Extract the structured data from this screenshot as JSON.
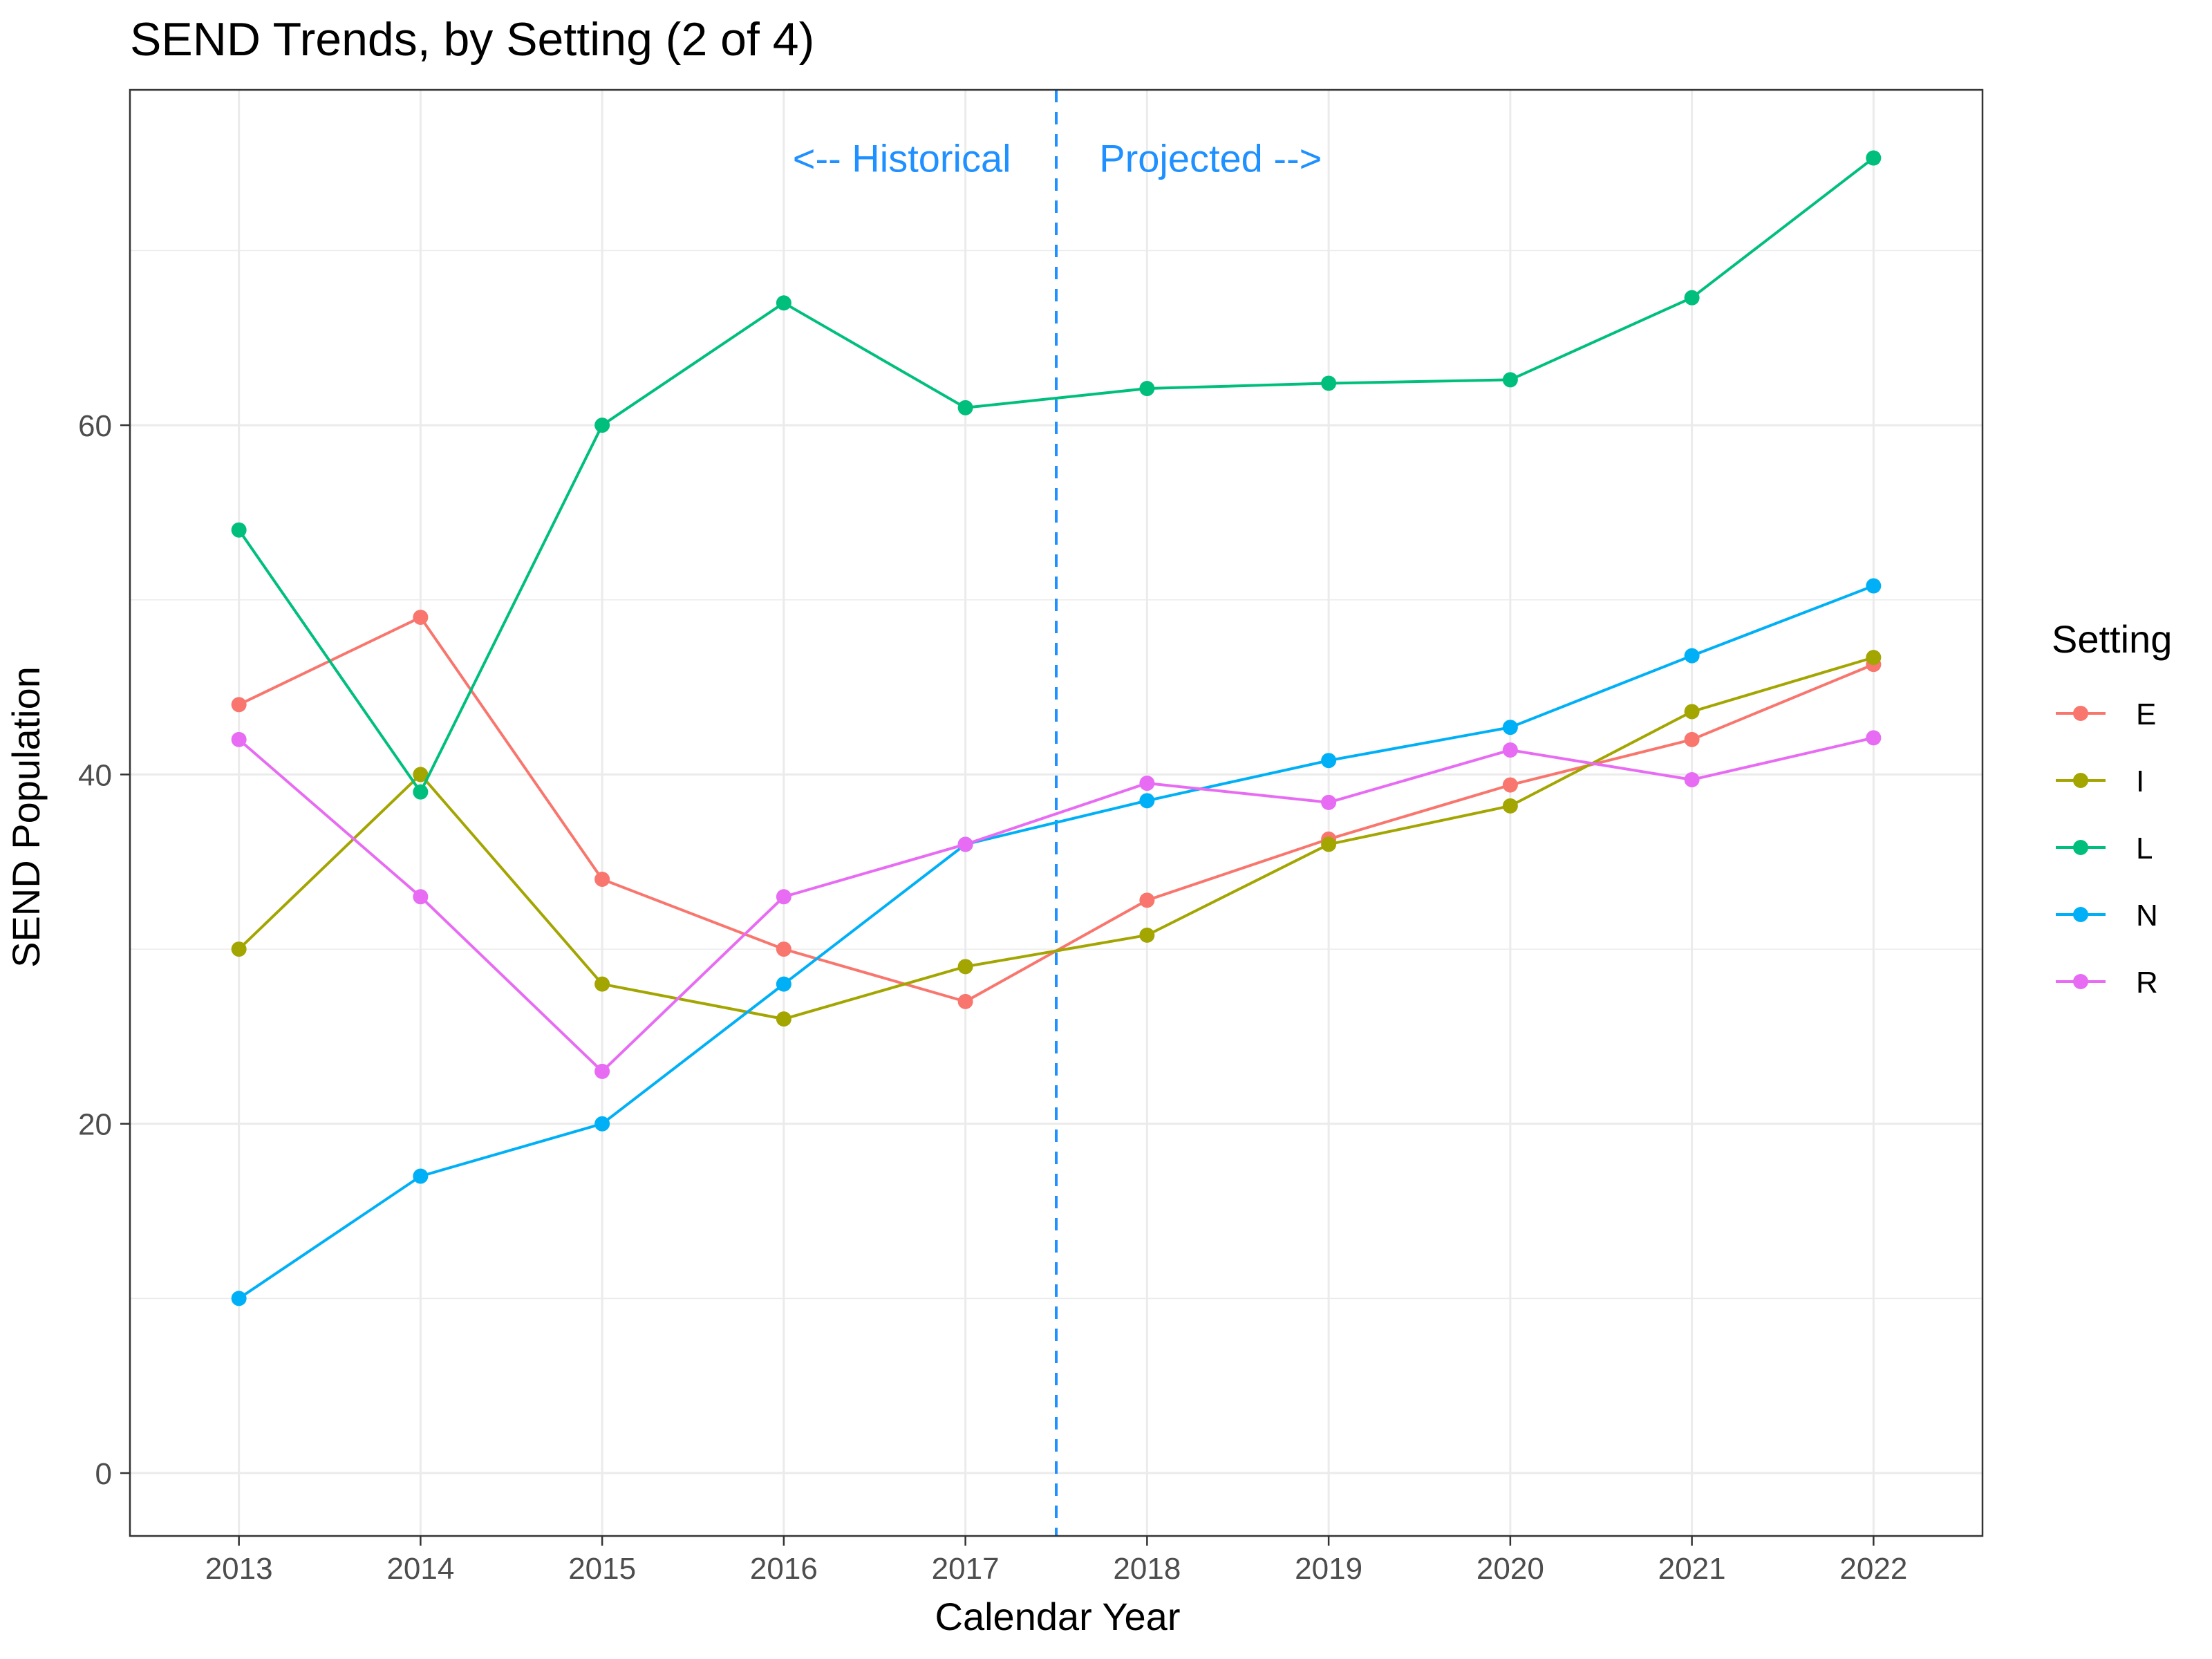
{
  "chart_data": {
    "type": "line",
    "title": "SEND Trends, by Setting (2 of 4)",
    "xlabel": "Calendar Year",
    "ylabel": "SEND Population",
    "x": [
      2013,
      2014,
      2015,
      2016,
      2017,
      2018,
      2019,
      2020,
      2021,
      2022
    ],
    "xlim": [
      2012.4,
      2022.6
    ],
    "ylim": [
      -3.6,
      79.2
    ],
    "yticks": [
      0,
      20,
      40,
      60
    ],
    "grid": true,
    "legend_title": "Setting",
    "legend_position": "right",
    "series": [
      {
        "name": "E",
        "color": "#F8766D",
        "values": [
          44,
          49,
          34,
          30,
          27,
          32.8,
          36.3,
          39.4,
          42.0,
          46.3
        ]
      },
      {
        "name": "I",
        "color": "#A3A500",
        "values": [
          30,
          40,
          28,
          26,
          29,
          30.8,
          36.0,
          38.2,
          43.6,
          46.7
        ]
      },
      {
        "name": "L",
        "color": "#00BF7D",
        "values": [
          54,
          39,
          60,
          67,
          61,
          62.1,
          62.4,
          62.6,
          67.3,
          75.3
        ]
      },
      {
        "name": "N",
        "color": "#00B0F6",
        "values": [
          10,
          17,
          20,
          28,
          36,
          38.5,
          40.8,
          42.7,
          46.8,
          50.8
        ]
      },
      {
        "name": "R",
        "color": "#E76BF3",
        "values": [
          42,
          33,
          23,
          33,
          36,
          39.5,
          38.4,
          41.4,
          39.7,
          42.1
        ]
      }
    ],
    "divider": {
      "x": 2017.5,
      "color": "#1E90FF"
    },
    "annotations": [
      {
        "text": "<-- Historical",
        "x": 2016.65,
        "y": 75.3,
        "color": "#1E90FF"
      },
      {
        "text": "Projected -->",
        "x": 2018.35,
        "y": 75.3,
        "color": "#1E90FF"
      }
    ]
  }
}
